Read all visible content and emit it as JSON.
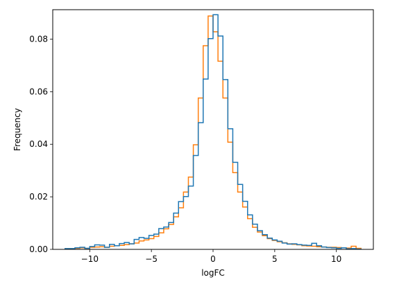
{
  "chart_data": {
    "type": "histogram",
    "title": "",
    "xlabel": "logFC",
    "ylabel": "Frequency",
    "xlim": [
      -13.0,
      13.0
    ],
    "ylim": [
      0.0,
      0.0912
    ],
    "xticks": [
      -10,
      -5,
      0,
      5,
      10
    ],
    "xtick_labels": [
      "−10",
      "−5",
      "0",
      "5",
      "10"
    ],
    "yticks": [
      0.0,
      0.02,
      0.04,
      0.06,
      0.08
    ],
    "ytick_labels": [
      "0.00",
      "0.02",
      "0.04",
      "0.06",
      "0.08"
    ],
    "grid": false,
    "legend": "none",
    "series": [
      {
        "color": "#ff7f0e",
        "bin_edges": [
          -12.0,
          -11.6,
          -11.2,
          -10.8,
          -10.4,
          -10.0,
          -9.6,
          -9.2,
          -8.8,
          -8.4,
          -8.0,
          -7.6,
          -7.2,
          -6.8,
          -6.4,
          -6.0,
          -5.6,
          -5.2,
          -4.8,
          -4.4,
          -4.0,
          -3.6,
          -3.2,
          -2.8,
          -2.4,
          -2.0,
          -1.6,
          -1.2,
          -0.8,
          -0.4,
          0.0,
          0.4,
          0.8,
          1.2,
          1.6,
          2.0,
          2.4,
          2.8,
          3.2,
          3.6,
          4.0,
          4.4,
          4.8,
          5.2,
          5.6,
          6.0,
          6.4,
          6.8,
          7.2,
          7.6,
          8.0,
          8.4,
          8.8,
          9.2,
          9.6,
          10.0,
          10.4,
          10.8,
          11.2,
          11.6,
          12.0
        ],
        "values": [
          0.0003,
          0.0003,
          0.0004,
          0.0006,
          0.0004,
          0.0008,
          0.0009,
          0.001,
          0.0008,
          0.0012,
          0.0014,
          0.0015,
          0.0018,
          0.0021,
          0.0024,
          0.0032,
          0.0036,
          0.0041,
          0.0049,
          0.0063,
          0.0078,
          0.0095,
          0.0124,
          0.0158,
          0.0218,
          0.0275,
          0.0398,
          0.0576,
          0.0775,
          0.0888,
          0.0828,
          0.0716,
          0.0576,
          0.0408,
          0.0292,
          0.0218,
          0.0161,
          0.0117,
          0.0084,
          0.0066,
          0.0052,
          0.0041,
          0.0034,
          0.0029,
          0.0025,
          0.0021,
          0.0019,
          0.0017,
          0.0014,
          0.0013,
          0.0012,
          0.001,
          0.0009,
          0.0008,
          0.0008,
          0.0007,
          0.0006,
          0.0005,
          0.0012,
          0.0004
        ]
      },
      {
        "color": "#1f77b4",
        "bin_edges": [
          -12.0,
          -11.6,
          -11.2,
          -10.8,
          -10.4,
          -10.0,
          -9.6,
          -9.2,
          -8.8,
          -8.4,
          -8.0,
          -7.6,
          -7.2,
          -6.8,
          -6.4,
          -6.0,
          -5.6,
          -5.2,
          -4.8,
          -4.4,
          -4.0,
          -3.6,
          -3.2,
          -2.8,
          -2.4,
          -2.0,
          -1.6,
          -1.2,
          -0.8,
          -0.4,
          0.0,
          0.4,
          0.8,
          1.2,
          1.6,
          2.0,
          2.4,
          2.8,
          3.2,
          3.6,
          4.0,
          4.4,
          4.8,
          5.2,
          5.6,
          6.0,
          6.4,
          6.8,
          7.2,
          7.6,
          8.0,
          8.4,
          8.8,
          9.2,
          9.6,
          10.0,
          10.4,
          10.8,
          11.2,
          11.6,
          12.0
        ],
        "values": [
          0.0003,
          0.0003,
          0.0006,
          0.0008,
          0.0004,
          0.0011,
          0.0017,
          0.0016,
          0.0008,
          0.0019,
          0.0014,
          0.0022,
          0.0026,
          0.0021,
          0.0038,
          0.0045,
          0.0042,
          0.0053,
          0.0058,
          0.0079,
          0.0085,
          0.0102,
          0.0138,
          0.0182,
          0.0201,
          0.0241,
          0.0357,
          0.0482,
          0.0648,
          0.0802,
          0.0893,
          0.0812,
          0.0646,
          0.0459,
          0.0331,
          0.0247,
          0.0183,
          0.0131,
          0.0096,
          0.0071,
          0.0056,
          0.0043,
          0.0036,
          0.0031,
          0.0024,
          0.002,
          0.0021,
          0.0018,
          0.0016,
          0.0015,
          0.0023,
          0.0014,
          0.0009,
          0.0007,
          0.0006,
          0.0004,
          0.0006,
          0.0002,
          0.0003,
          0.0001
        ]
      }
    ]
  }
}
